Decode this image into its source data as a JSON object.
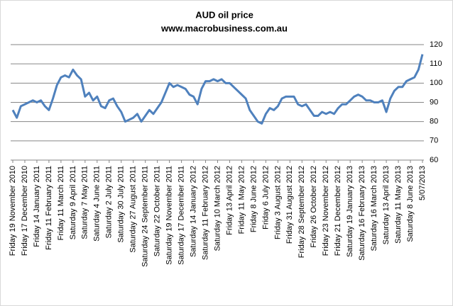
{
  "chart_data": {
    "type": "line",
    "title": "AUD oil price",
    "subtitle": "www.macrobusiness.com.au",
    "categories": [
      "Friday 19 November 2010",
      null,
      null,
      "Friday 17 December 2010",
      null,
      null,
      "Friday 14 January 2011",
      null,
      null,
      "Friday 11 February 2011",
      null,
      null,
      "Friday 11 March 2011",
      null,
      null,
      "Saturday 9 April 2011",
      null,
      null,
      "Saturday 7 May 2011",
      null,
      null,
      "Saturday 4 June 2011",
      null,
      null,
      "Saturday 2 July 2011",
      null,
      null,
      "Saturday 30 July 2011",
      null,
      null,
      "Saturday 27 August 2011",
      null,
      null,
      "Saturday 24 September 2011",
      null,
      null,
      "Saturday 22 October 2011",
      null,
      null,
      "Saturday 19 November 2011",
      null,
      null,
      "Saturday 17 December 2011",
      null,
      null,
      "Saturday 14 January 2012",
      null,
      null,
      "Saturday 11 February 2012",
      null,
      null,
      "Saturday 10 March 2012",
      null,
      null,
      "Friday 13 April 2012",
      null,
      null,
      "Friday 11 May 2012",
      null,
      null,
      "Friday 8 June 2012",
      null,
      null,
      "Friday 6 July 2012",
      null,
      null,
      "Friday 3 August 2012",
      null,
      null,
      "Friday 31 August 2012",
      null,
      null,
      "Friday 28 September 2012",
      null,
      null,
      "Friday 26 October 2012",
      null,
      null,
      "Friday 23 November 2012",
      null,
      null,
      "Friday 21 December 2012",
      null,
      null,
      "Saturday 19 January 2013",
      null,
      null,
      "Saturday 16 February 2013",
      null,
      null,
      "Saturday 16 March 2013",
      null,
      null,
      "Saturday 13 April 2013",
      null,
      null,
      "Saturday 11 May 2013",
      null,
      null,
      "Saturday 8 June 2013",
      null,
      null,
      "5/07/2013"
    ],
    "values": [
      86,
      82,
      88,
      89,
      90,
      91,
      90,
      91,
      88,
      86,
      92,
      99,
      103,
      104,
      103,
      107,
      104,
      102,
      93,
      95,
      91,
      93,
      88,
      87,
      91,
      92,
      88,
      85,
      80,
      81,
      82,
      84,
      80,
      83,
      86,
      84,
      87,
      90,
      95,
      100,
      98,
      99,
      98,
      97,
      94,
      93,
      89,
      97,
      101,
      101,
      102,
      101,
      102,
      100,
      100,
      98,
      96,
      94,
      92,
      86,
      83,
      80,
      79,
      84,
      87,
      86,
      88,
      92,
      93,
      93,
      93,
      89,
      88,
      89,
      86,
      83,
      83,
      85,
      84,
      85,
      84,
      87,
      89,
      89,
      91,
      93,
      94,
      93,
      91,
      91,
      90,
      90,
      91,
      85,
      92,
      96,
      98,
      98,
      101,
      102,
      103,
      107,
      115
    ],
    "color": "#4f81bd",
    "ylim": [
      60,
      120
    ],
    "yticks": [
      60,
      70,
      80,
      90,
      100,
      110,
      120
    ],
    "grid": true
  }
}
